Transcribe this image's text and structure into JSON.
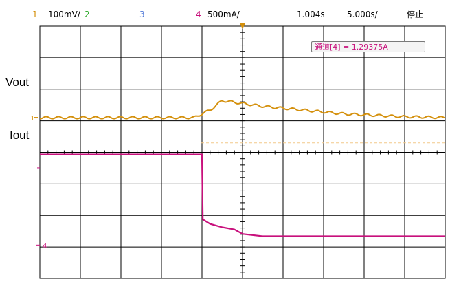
{
  "header": {
    "ch1_number": "1",
    "ch1_scale": "100mV/",
    "ch2_number": "2",
    "ch3_number": "3",
    "ch4_number": "4",
    "ch4_scale": "500mA/",
    "trigger_time": "1.004s",
    "timebase": "5.000s/",
    "run_status": "停止"
  },
  "labels": {
    "vout": "Vout",
    "iout": "Iout",
    "ch1_marker": "1",
    "ch4_marker": "4"
  },
  "measurement": {
    "text": "通道[4] = 1.29375A"
  },
  "colors": {
    "ch1": "#d4900c",
    "ch2": "#22a51f",
    "ch3": "#4f78d8",
    "ch4": "#c8107c",
    "grid": "#000000"
  },
  "chart_data": {
    "type": "line",
    "title": "",
    "grid": true,
    "grid_divisions": {
      "x": 10,
      "y": 8
    },
    "x_range_div": [
      -5,
      5
    ],
    "series": [
      {
        "name": "Vout",
        "unit_per_div": "100mV",
        "x_div": [
          -5,
          -4.5,
          -4,
          -3.5,
          -3,
          -2.5,
          -2,
          -1.2,
          -0.8,
          -0.5,
          0,
          0.5,
          1,
          1.5,
          2,
          2.5,
          3,
          3.5,
          4,
          4.5,
          5
        ],
        "y_div": [
          0,
          0,
          0,
          0,
          0,
          0,
          0,
          0,
          0.4,
          0.9,
          0.75,
          0.6,
          0.5,
          0.4,
          0.3,
          0.2,
          0.15,
          0.1,
          0.05,
          0.03,
          0
        ]
      },
      {
        "name": "Iout",
        "unit_per_div": "500mA",
        "x_div": [
          -5,
          -4.5,
          -4,
          -3.5,
          -3,
          -2.5,
          -2,
          -1.0,
          -0.98,
          -0.8,
          -0.5,
          -0.2,
          0,
          0.5,
          1,
          2,
          3,
          4,
          5
        ],
        "y_div": [
          4.2,
          4.2,
          4.2,
          4.2,
          4.2,
          4.2,
          4.2,
          4.2,
          1.3,
          1.1,
          0.95,
          0.85,
          0.65,
          0.55,
          0.55,
          0.55,
          0.55,
          0.55,
          0.55
        ]
      }
    ]
  }
}
